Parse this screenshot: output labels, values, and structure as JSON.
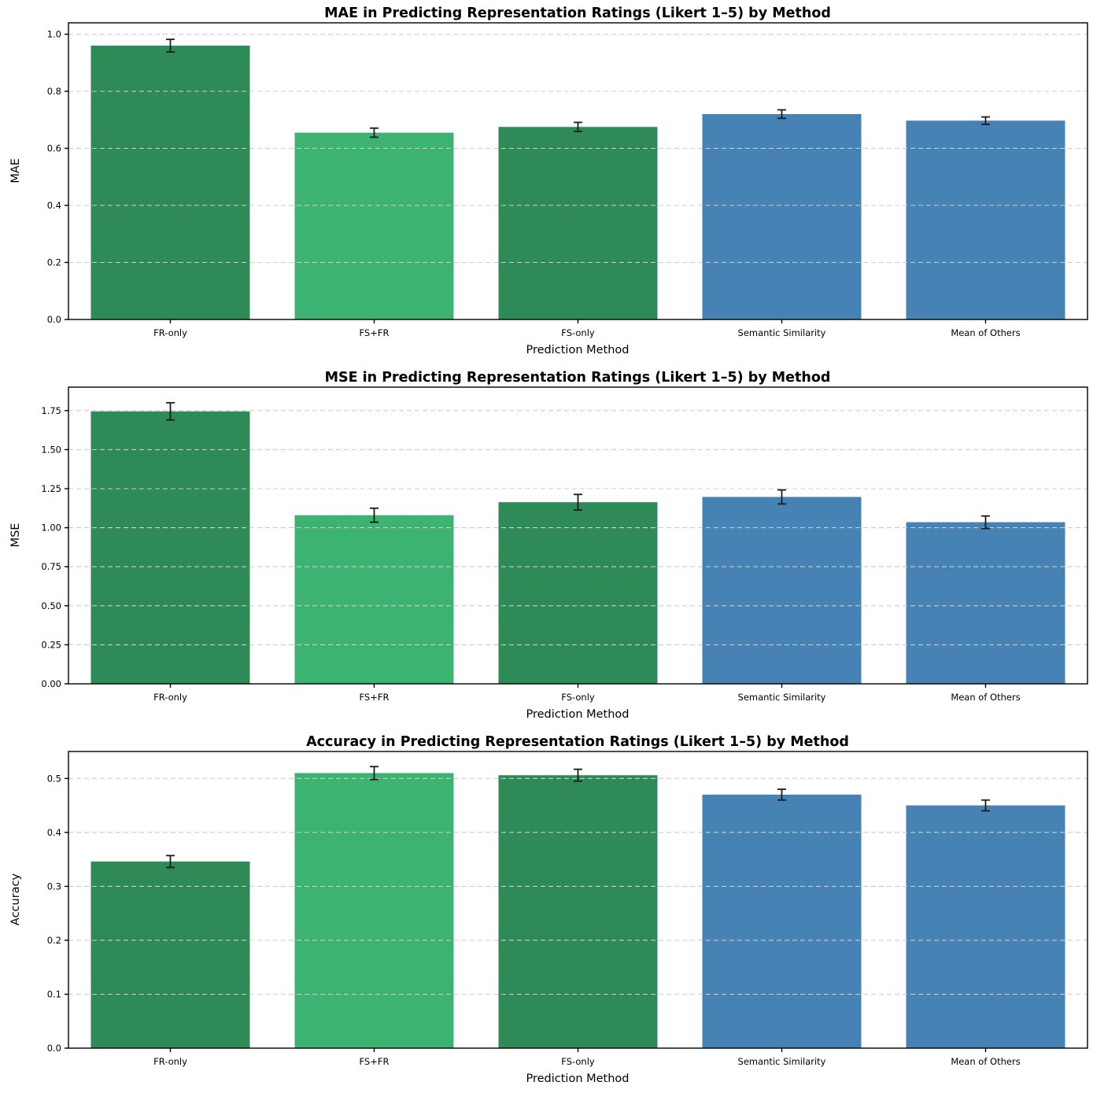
{
  "figure": {
    "background": "#ffffff"
  },
  "colors": {
    "bar_colors": [
      "#2e8b57",
      "#3cb371",
      "#2e8b57",
      "#4682b4",
      "#4682b4"
    ],
    "error_bar": "#1c1c1c",
    "grid": "#cccccc",
    "axis": "#000000",
    "text": "#000000"
  },
  "chart_data": [
    {
      "type": "bar",
      "title": "MAE in Predicting Representation Ratings (Likert 1–5) by Method",
      "xlabel": "Prediction Method",
      "ylabel": "MAE",
      "categories": [
        "FR-only",
        "FS+FR",
        "FS-only",
        "Semantic Similarity",
        "Mean of Others"
      ],
      "values": [
        0.96,
        0.655,
        0.675,
        0.72,
        0.697
      ],
      "errors": [
        0.022,
        0.016,
        0.016,
        0.015,
        0.013
      ],
      "ytick_labels": [
        "0.0",
        "0.2",
        "0.4",
        "0.6",
        "0.8",
        "1.0"
      ],
      "ytick_values": [
        0.0,
        0.2,
        0.4,
        0.6,
        0.8,
        1.0
      ],
      "ylim": [
        0,
        1.04
      ],
      "grid": true,
      "legend": "none"
    },
    {
      "type": "bar",
      "title": "MSE in Predicting Representation Ratings (Likert 1–5) by Method",
      "xlabel": "Prediction Method",
      "ylabel": "MSE",
      "categories": [
        "FR-only",
        "FS+FR",
        "FS-only",
        "Semantic Similarity",
        "Mean of Others"
      ],
      "values": [
        1.745,
        1.08,
        1.163,
        1.197,
        1.035
      ],
      "errors": [
        0.055,
        0.045,
        0.05,
        0.045,
        0.04
      ],
      "ytick_labels": [
        "0.00",
        "0.25",
        "0.50",
        "0.75",
        "1.00",
        "1.25",
        "1.50",
        "1.75"
      ],
      "ytick_values": [
        0.0,
        0.25,
        0.5,
        0.75,
        1.0,
        1.25,
        1.5,
        1.75
      ],
      "ylim": [
        0,
        1.9
      ],
      "grid": true,
      "legend": "none"
    },
    {
      "type": "bar",
      "title": "Accuracy in Predicting Representation Ratings (Likert 1–5) by Method",
      "xlabel": "Prediction Method",
      "ylabel": "Accuracy",
      "categories": [
        "FR-only",
        "FS+FR",
        "FS-only",
        "Semantic Similarity",
        "Mean of Others"
      ],
      "values": [
        0.346,
        0.51,
        0.506,
        0.47,
        0.45
      ],
      "errors": [
        0.011,
        0.012,
        0.011,
        0.01,
        0.01
      ],
      "ytick_labels": [
        "0.0",
        "0.1",
        "0.2",
        "0.3",
        "0.4",
        "0.5"
      ],
      "ytick_values": [
        0.0,
        0.1,
        0.2,
        0.3,
        0.4,
        0.5
      ],
      "ylim": [
        0,
        0.55
      ],
      "grid": true,
      "legend": "none"
    }
  ]
}
